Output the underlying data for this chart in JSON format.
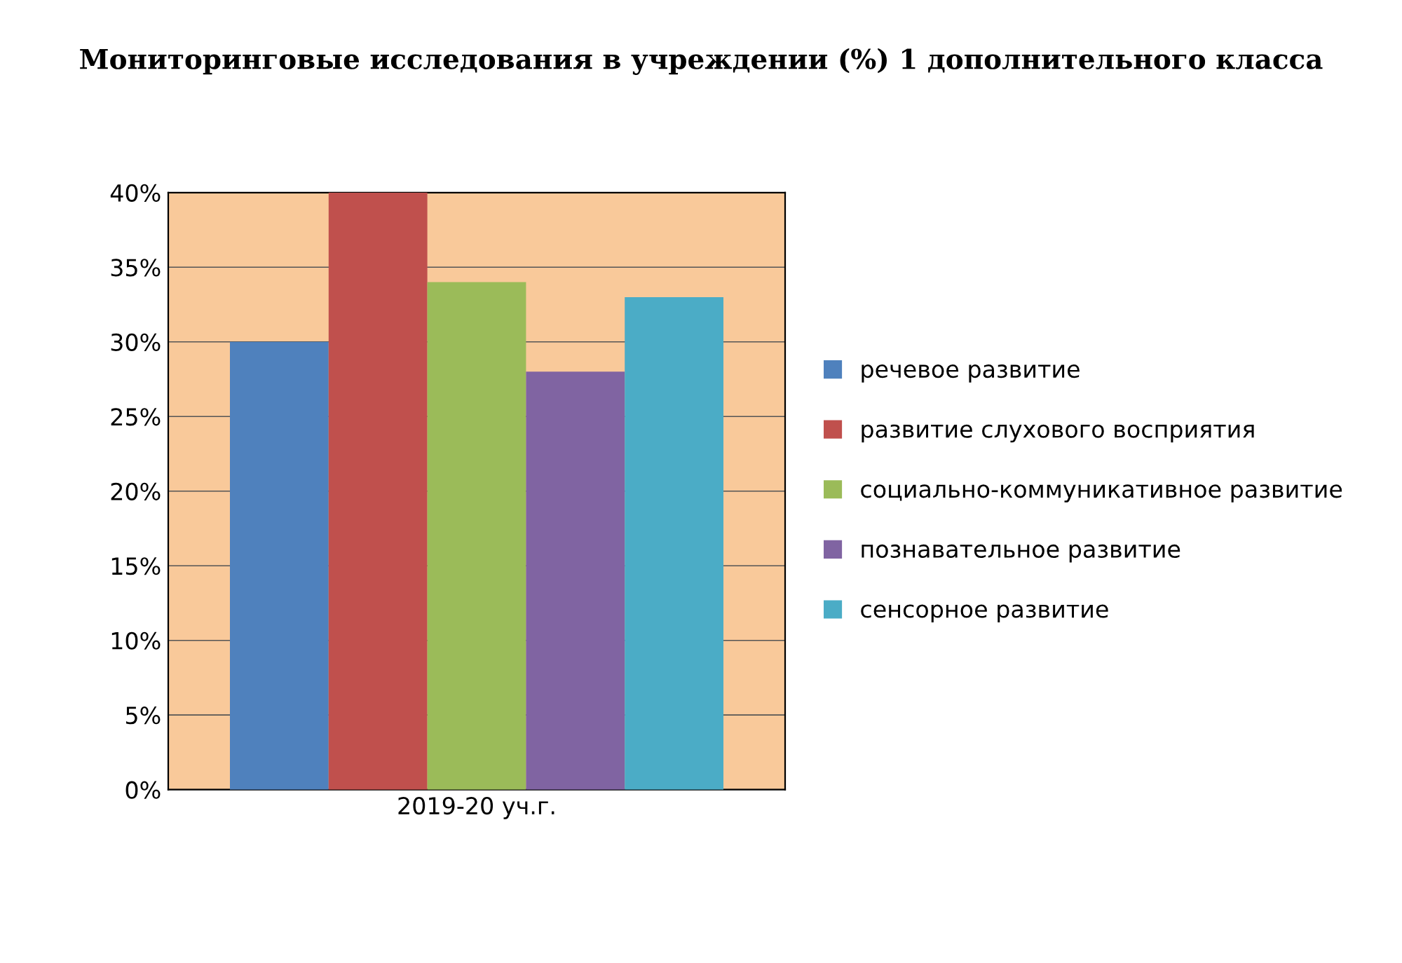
{
  "chart_data": {
    "type": "bar",
    "title": "Мониторинговые исследования в учреждении (%) 1 дополнительного класса",
    "categories": [
      "2019-20 уч.г."
    ],
    "series": [
      {
        "name": "речевое развитие",
        "color": "#4f81bd",
        "values": [
          30
        ]
      },
      {
        "name": "развитие слухового восприятия",
        "color": "#c0504d",
        "values": [
          40
        ]
      },
      {
        "name": "социально-коммуникативное развитие",
        "color": "#9bbb59",
        "values": [
          34
        ]
      },
      {
        "name": "познавательное развитие",
        "color": "#8064a2",
        "values": [
          28
        ]
      },
      {
        "name": "сенсорное развитие",
        "color": "#4bacc6",
        "values": [
          33
        ]
      }
    ],
    "ylim": [
      0,
      40
    ],
    "yticks": [
      {
        "value": 0,
        "label": "0%"
      },
      {
        "value": 5,
        "label": "5%"
      },
      {
        "value": 10,
        "label": "10%"
      },
      {
        "value": 15,
        "label": "15%"
      },
      {
        "value": 20,
        "label": "20%"
      },
      {
        "value": 25,
        "label": "25%"
      },
      {
        "value": 30,
        "label": "30%"
      },
      {
        "value": 35,
        "label": "35%"
      },
      {
        "value": 40,
        "label": "40%"
      }
    ],
    "grid": "y",
    "legend": "right"
  }
}
